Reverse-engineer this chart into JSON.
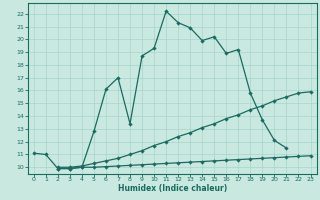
{
  "title": "",
  "xlabel": "Humidex (Indice chaleur)",
  "ylabel": "",
  "background_color": "#c8e8e0",
  "grid_color": "#a8d4cc",
  "line_color": "#1a6b60",
  "xlim": [
    -0.5,
    23.5
  ],
  "ylim": [
    9.5,
    22.8
  ],
  "xticks": [
    0,
    1,
    2,
    3,
    4,
    5,
    6,
    7,
    8,
    9,
    10,
    11,
    12,
    13,
    14,
    15,
    16,
    17,
    18,
    19,
    20,
    21,
    22,
    23
  ],
  "yticks": [
    10,
    11,
    12,
    13,
    14,
    15,
    16,
    17,
    18,
    19,
    20,
    21,
    22
  ],
  "line1_x": [
    0,
    1,
    2,
    3,
    4,
    5,
    6,
    7,
    8,
    9,
    10,
    11,
    12,
    13,
    14,
    15,
    16,
    17,
    18,
    19,
    20,
    21
  ],
  "line1_y": [
    11.1,
    11.0,
    9.9,
    9.9,
    10.0,
    12.8,
    16.1,
    17.0,
    13.4,
    18.7,
    19.3,
    22.2,
    21.3,
    20.9,
    19.9,
    20.2,
    18.9,
    19.2,
    15.8,
    13.7,
    12.1,
    11.5
  ],
  "line2_x": [
    2,
    3,
    4,
    5,
    6,
    7,
    8,
    9,
    10,
    11,
    12,
    13,
    14,
    15,
    16,
    17,
    18,
    19,
    20,
    21,
    22,
    23
  ],
  "line2_y": [
    10.0,
    10.0,
    10.1,
    10.3,
    10.5,
    10.7,
    11.0,
    11.3,
    11.7,
    12.0,
    12.4,
    12.7,
    13.1,
    13.4,
    13.8,
    14.1,
    14.5,
    14.8,
    15.2,
    15.5,
    15.8,
    15.9
  ],
  "line3_x": [
    2,
    3,
    4,
    5,
    6,
    7,
    8,
    9,
    10,
    11,
    12,
    13,
    14,
    15,
    16,
    17,
    18,
    19,
    20,
    21,
    22,
    23
  ],
  "line3_y": [
    9.9,
    9.9,
    10.0,
    10.0,
    10.05,
    10.1,
    10.15,
    10.2,
    10.25,
    10.3,
    10.35,
    10.4,
    10.45,
    10.5,
    10.55,
    10.6,
    10.65,
    10.7,
    10.75,
    10.8,
    10.85,
    10.9
  ],
  "tick_fontsize": 4.5,
  "xlabel_fontsize": 5.5
}
